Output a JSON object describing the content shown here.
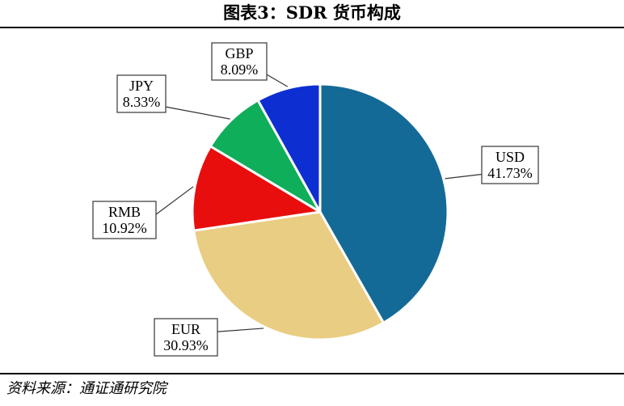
{
  "figure": {
    "title": "图表3：SDR 货币构成",
    "source": "资料来源：通证通研究院"
  },
  "chart_data": {
    "type": "pie",
    "title": "图表3：SDR 货币构成",
    "slices": [
      {
        "name": "USD",
        "value": 41.73,
        "label": "41.73%",
        "color": "#146a96"
      },
      {
        "name": "EUR",
        "value": 30.93,
        "label": "30.93%",
        "color": "#e9cd82"
      },
      {
        "name": "RMB",
        "value": 10.92,
        "label": "10.92%",
        "color": "#e80e0e"
      },
      {
        "name": "JPY",
        "value": 8.33,
        "label": "8.33%",
        "color": "#0fae5b"
      },
      {
        "name": "GBP",
        "value": 8.09,
        "label": "8.09%",
        "color": "#0d2fd2"
      }
    ],
    "start_angle_deg": 0,
    "direction": "clockwise",
    "labels": "callout boxes with leader lines"
  }
}
